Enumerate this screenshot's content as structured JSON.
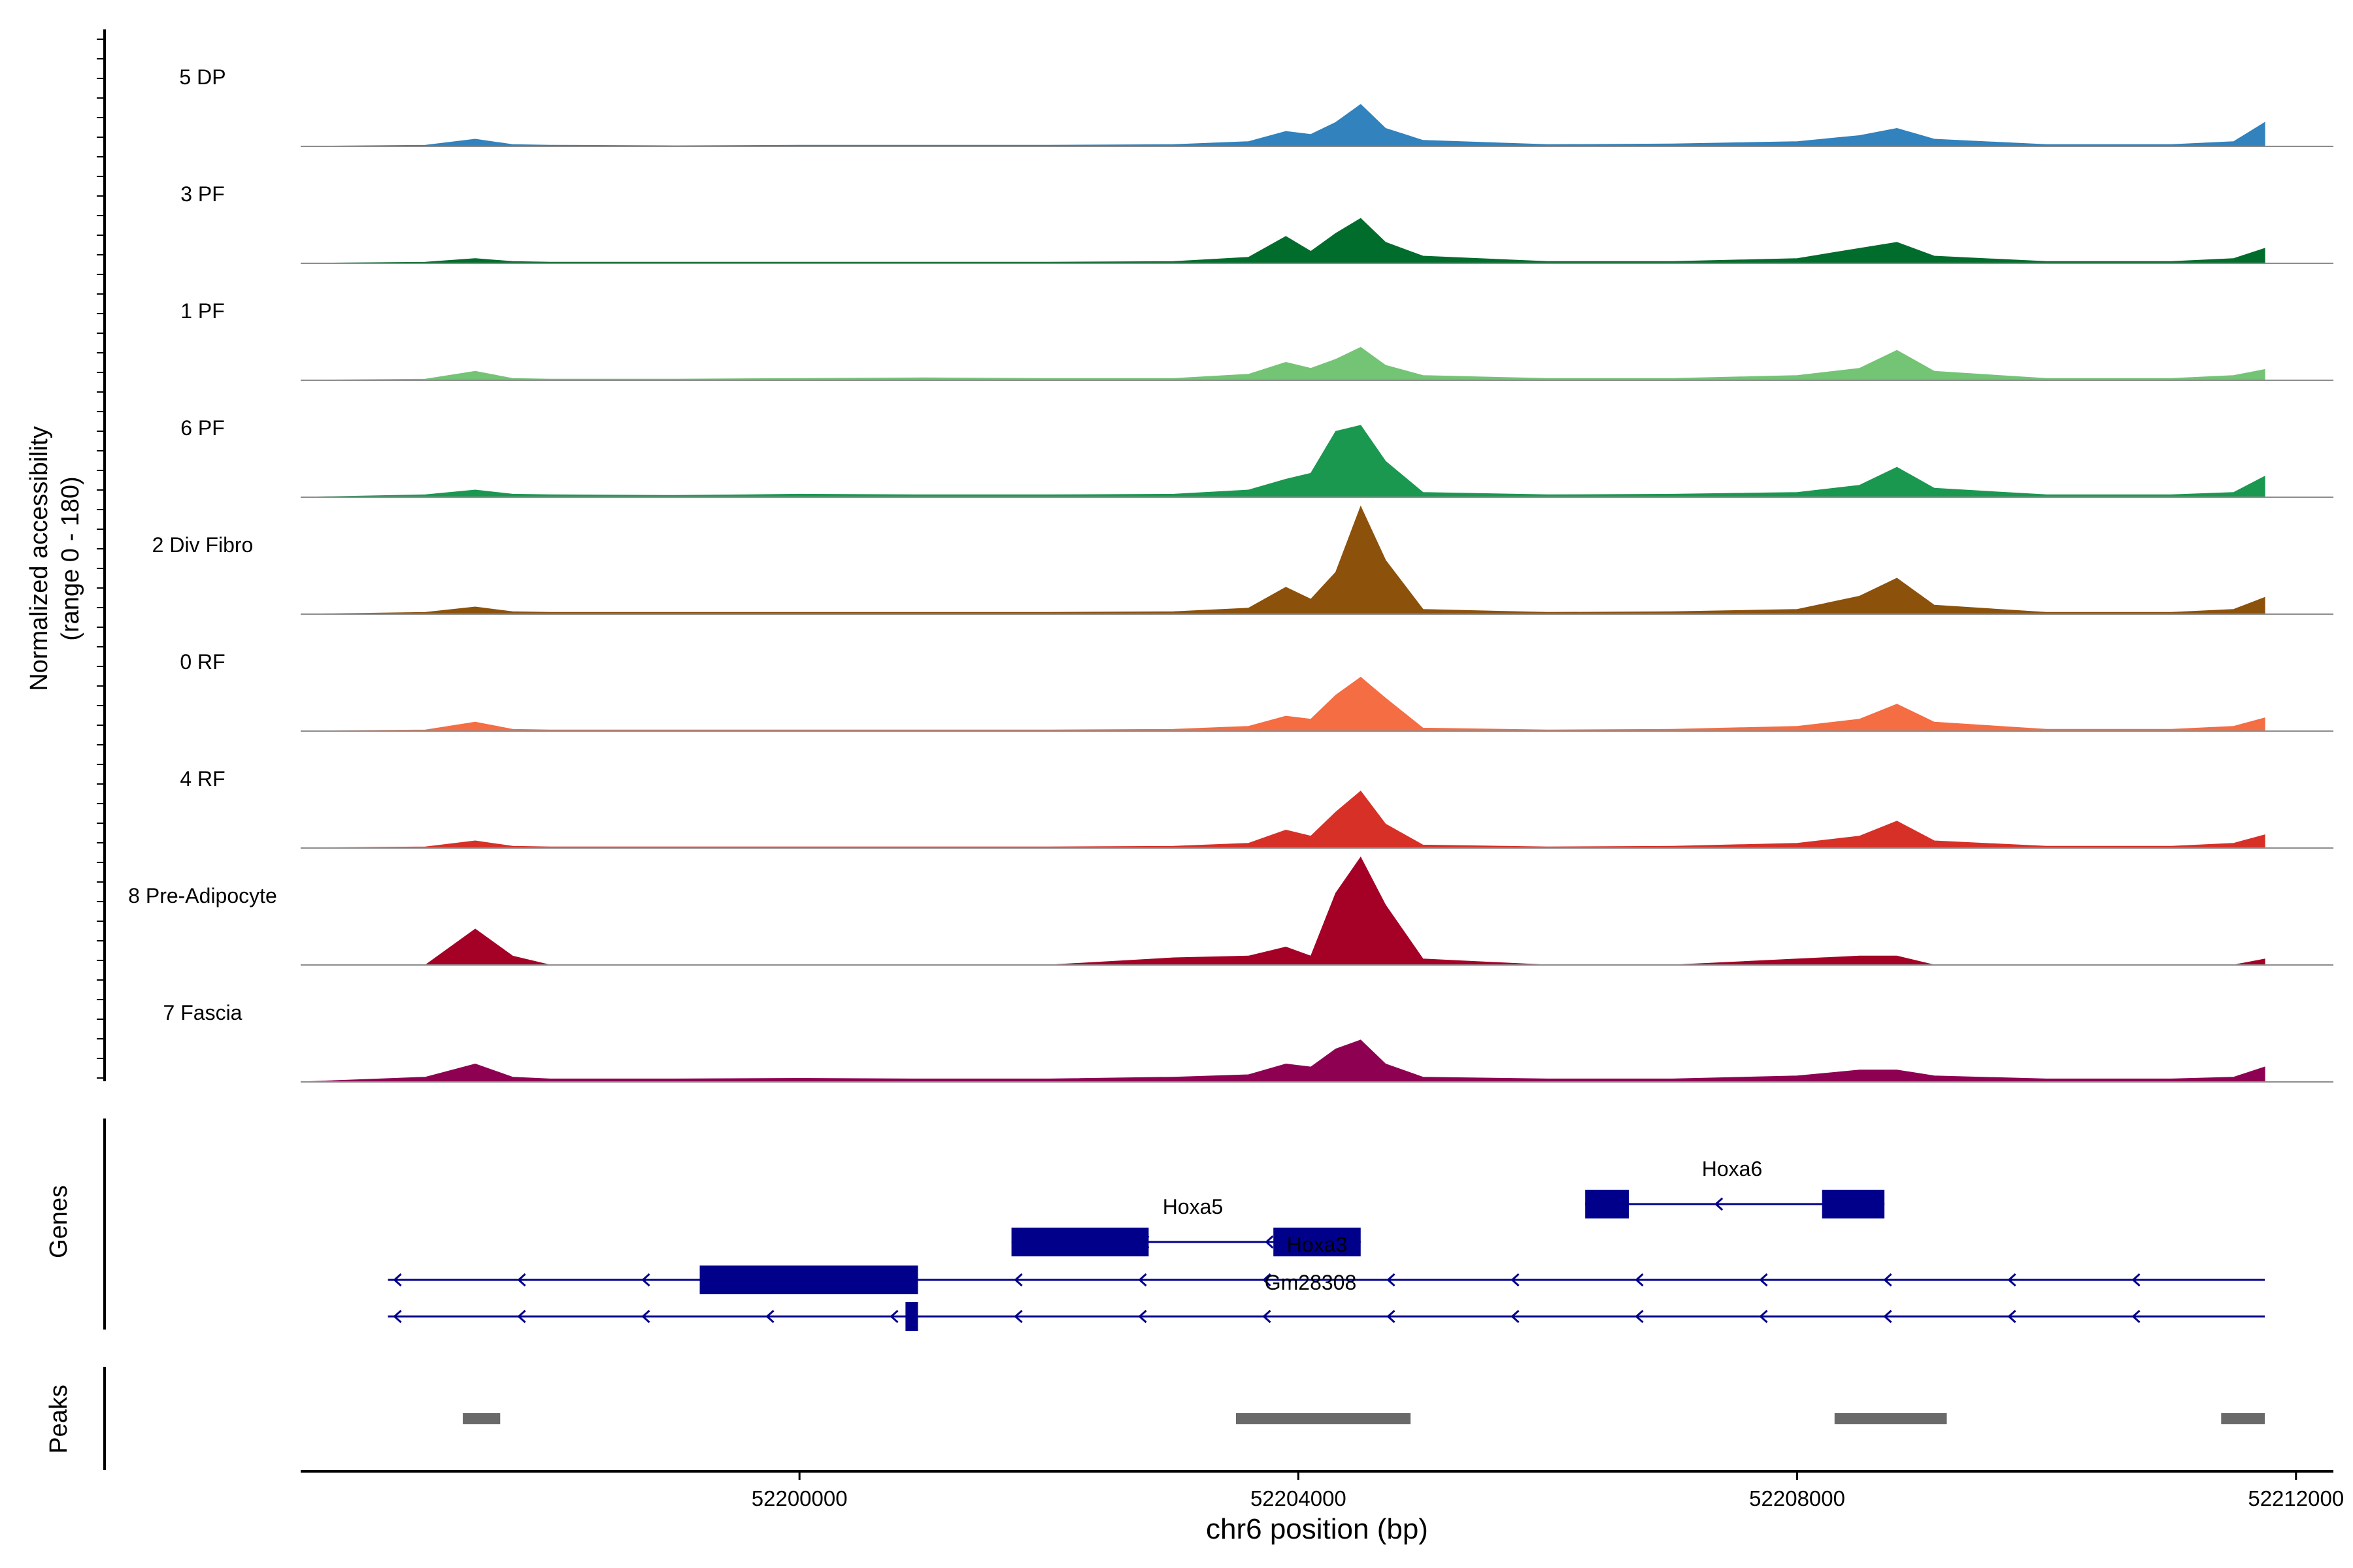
{
  "chart_data": {
    "type": "area",
    "title": "",
    "coverage": {
      "ylabel_line1": "Normalized accessibility",
      "ylabel_line2": "(range 0 - 180)",
      "yrange": [
        0,
        180
      ],
      "x": [
        52196000,
        52197000,
        52197400,
        52197700,
        52198000,
        52199000,
        52200000,
        52201000,
        52202000,
        52203000,
        52203600,
        52203900,
        52204100,
        52204300,
        52204500,
        52204700,
        52205000,
        52206000,
        52207000,
        52208000,
        52208500,
        52208800,
        52209100,
        52210000,
        52211000,
        52211500,
        52211750
      ],
      "tracks": [
        {
          "name": "5 DP",
          "color": "#3182BD",
          "values": [
            0,
            2,
            12,
            3,
            2,
            1,
            2,
            2,
            2,
            3,
            8,
            25,
            20,
            40,
            70,
            30,
            10,
            3,
            4,
            8,
            18,
            30,
            12,
            3,
            3,
            8,
            40
          ]
        },
        {
          "name": "3 PF",
          "color": "#006D2C",
          "values": [
            0,
            2,
            8,
            3,
            2,
            2,
            2,
            2,
            2,
            3,
            10,
            45,
            20,
            50,
            75,
            35,
            12,
            3,
            3,
            8,
            25,
            35,
            12,
            3,
            3,
            8,
            25
          ]
        },
        {
          "name": "1 PF",
          "color": "#74C476",
          "values": [
            0,
            2,
            15,
            3,
            2,
            2,
            3,
            4,
            3,
            3,
            10,
            30,
            20,
            35,
            55,
            25,
            8,
            3,
            3,
            8,
            20,
            50,
            15,
            3,
            3,
            8,
            18
          ]
        },
        {
          "name": "6 PF",
          "color": "#1A9850",
          "values": [
            0,
            4,
            12,
            5,
            4,
            3,
            5,
            4,
            4,
            5,
            12,
            30,
            40,
            110,
            120,
            60,
            8,
            4,
            5,
            8,
            20,
            50,
            15,
            4,
            4,
            8,
            35
          ]
        },
        {
          "name": "2 Div Fibro",
          "color": "#8C510A",
          "values": [
            0,
            3,
            12,
            4,
            3,
            3,
            3,
            3,
            3,
            4,
            10,
            45,
            25,
            70,
            180,
            90,
            8,
            3,
            4,
            8,
            30,
            60,
            15,
            3,
            3,
            8,
            28
          ]
        },
        {
          "name": "0 RF",
          "color": "#F46D43",
          "values": [
            0,
            2,
            15,
            3,
            2,
            2,
            2,
            2,
            2,
            3,
            8,
            25,
            20,
            60,
            90,
            55,
            5,
            2,
            3,
            8,
            20,
            45,
            15,
            3,
            3,
            8,
            22
          ]
        },
        {
          "name": "4 RF",
          "color": "#D73027",
          "values": [
            0,
            2,
            12,
            3,
            2,
            2,
            2,
            2,
            2,
            3,
            8,
            30,
            20,
            60,
            95,
            40,
            5,
            2,
            3,
            8,
            20,
            45,
            12,
            3,
            3,
            8,
            22
          ]
        },
        {
          "name": "8 Pre-Adipocyte",
          "color": "#A50026",
          "values": [
            0,
            0,
            60,
            15,
            0,
            0,
            0,
            0,
            0,
            12,
            15,
            30,
            15,
            120,
            180,
            100,
            10,
            0,
            0,
            10,
            15,
            15,
            0,
            0,
            0,
            0,
            10
          ]
        },
        {
          "name": "7 Fascia",
          "color": "#8E0152",
          "values": [
            0,
            8,
            30,
            8,
            5,
            5,
            6,
            5,
            5,
            8,
            12,
            30,
            25,
            55,
            70,
            30,
            8,
            5,
            5,
            10,
            20,
            20,
            10,
            5,
            5,
            8,
            25
          ]
        }
      ]
    },
    "genes": {
      "label": "Genes",
      "items": [
        {
          "name": "Hoxa6",
          "start": 52206300,
          "end": 52208700,
          "exons": [
            [
              52206300,
              52206650
            ],
            [
              52208200,
              52208700
            ]
          ],
          "strand": "-",
          "row": 0
        },
        {
          "name": "Hoxa5",
          "start": 52201700,
          "end": 52204500,
          "exons": [
            [
              52201700,
              52202800
            ],
            [
              52203800,
              52204500
            ]
          ],
          "strand": "-",
          "row": 1
        },
        {
          "name": "Hoxa3",
          "start": 52196700,
          "end": 52211750,
          "exons": [
            [
              52199200,
              52200950
            ]
          ],
          "strand": "-",
          "row": 2
        },
        {
          "name": "Gm28308",
          "start": 52196700,
          "end": 52211750,
          "exons": [
            [
              52200850,
              52200950
            ]
          ],
          "strand": "-",
          "row": 3
        }
      ]
    },
    "peaks": {
      "label": "Peaks",
      "regions": [
        [
          52197300,
          52197600
        ],
        [
          52203500,
          52204900
        ],
        [
          52208300,
          52209200
        ],
        [
          52211400,
          52211750
        ]
      ]
    },
    "x_axis": {
      "xlabel": "chr6 position (bp)",
      "xlim": [
        52196000,
        52212300
      ],
      "ticks": [
        52200000,
        52204000,
        52208000,
        52212000
      ],
      "tick_labels": [
        "52200000",
        "52204000",
        "52208000",
        "52212000"
      ]
    }
  },
  "colors": {
    "gene": "#00008B",
    "peak": "#696969",
    "baseline": "#8C8C8C",
    "axis": "#000000"
  }
}
